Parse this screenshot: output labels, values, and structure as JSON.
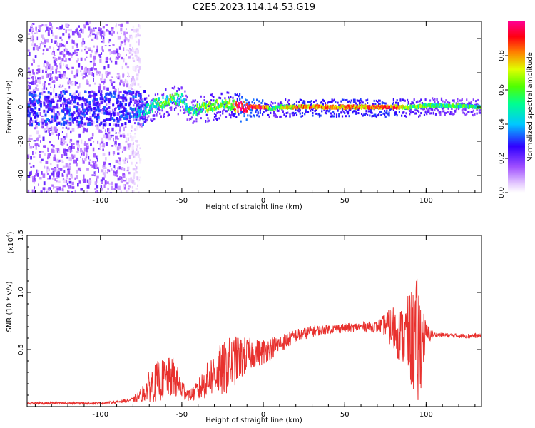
{
  "title": "C2E5.2023.114.14.53.G19",
  "colors": {
    "snr_line": "#e8312e",
    "frame": "#000000"
  },
  "chart_data": [
    {
      "type": "heatmap",
      "xlabel": "Height of straight line (km)",
      "ylabel": "Frequency (Hz)",
      "xlim": [
        -145,
        134
      ],
      "ylim": [
        -50,
        50
      ],
      "xticks": [
        -100,
        -50,
        0,
        50,
        100
      ],
      "yticks": [
        -40,
        -20,
        0,
        20,
        40
      ],
      "colorbar": {
        "label": "Normalized spectral amplitude",
        "range": [
          0.0,
          1.0
        ],
        "ticks": [
          "0.0",
          "0.2",
          "0.4",
          "0.6",
          "0.8"
        ],
        "colormap": "rainbow (white-violet-blue-cyan-green-yellow-red-magenta)"
      },
      "ridge": {
        "description": "frequency of maximum amplitude vs height",
        "x": [
          -75,
          -70,
          -65,
          -60,
          -55,
          -50,
          -45,
          -40,
          -35,
          -30,
          -25,
          -20,
          -15,
          -10,
          0,
          5,
          10,
          20,
          40,
          60,
          80,
          90,
          95,
          100,
          134
        ],
        "y": [
          -3,
          0,
          2,
          3,
          5,
          4,
          -3,
          -1,
          0,
          1,
          2,
          1,
          0,
          0,
          0,
          -1,
          0,
          0,
          0,
          0,
          0,
          0,
          0,
          1,
          0
        ],
        "amplitude": [
          0.35,
          0.45,
          0.5,
          0.55,
          0.55,
          0.5,
          0.45,
          0.55,
          0.6,
          0.6,
          0.6,
          0.65,
          0.95,
          0.95,
          0.9,
          0.5,
          0.6,
          0.8,
          0.8,
          0.8,
          0.85,
          0.55,
          0.6,
          0.55,
          0.5
        ]
      }
    },
    {
      "type": "line",
      "xlabel": "Height of straight line (km)",
      "ylabel": "SNR (10 * v/v)",
      "yscale_label": "(x10",
      "yscale_exp": "4",
      "yscale_close": ")",
      "xlim": [
        -145,
        134
      ],
      "ylim": [
        0,
        1.5
      ],
      "xticks": [
        -100,
        -50,
        0,
        50,
        100
      ],
      "yticks": [
        "0.5",
        "1.0",
        "1.5"
      ],
      "series": [
        {
          "x": [
            -145,
            -120,
            -100,
            -90,
            -80,
            -75,
            -70,
            -65,
            -60,
            -55,
            -50,
            -45,
            -40,
            -35,
            -30,
            -25,
            -20,
            -15,
            -10,
            -5,
            0,
            10,
            20,
            30,
            40,
            50,
            60,
            70,
            75,
            80,
            85,
            90,
            95,
            100,
            105,
            120,
            134
          ],
          "y": [
            0.03,
            0.03,
            0.03,
            0.04,
            0.06,
            0.1,
            0.18,
            0.22,
            0.24,
            0.26,
            0.15,
            0.1,
            0.14,
            0.22,
            0.3,
            0.32,
            0.38,
            0.42,
            0.45,
            0.47,
            0.48,
            0.55,
            0.62,
            0.66,
            0.68,
            0.69,
            0.7,
            0.7,
            0.72,
            0.68,
            0.62,
            0.6,
            0.55,
            0.63,
            0.63,
            0.62,
            0.62
          ],
          "spread": [
            0.01,
            0.01,
            0.01,
            0.01,
            0.02,
            0.06,
            0.14,
            0.18,
            0.18,
            0.18,
            0.1,
            0.05,
            0.1,
            0.15,
            0.2,
            0.24,
            0.24,
            0.2,
            0.16,
            0.12,
            0.12,
            0.08,
            0.06,
            0.05,
            0.04,
            0.04,
            0.04,
            0.05,
            0.1,
            0.22,
            0.25,
            0.4,
            0.6,
            0.1,
            0.02,
            0.02,
            0.02
          ]
        }
      ]
    }
  ]
}
